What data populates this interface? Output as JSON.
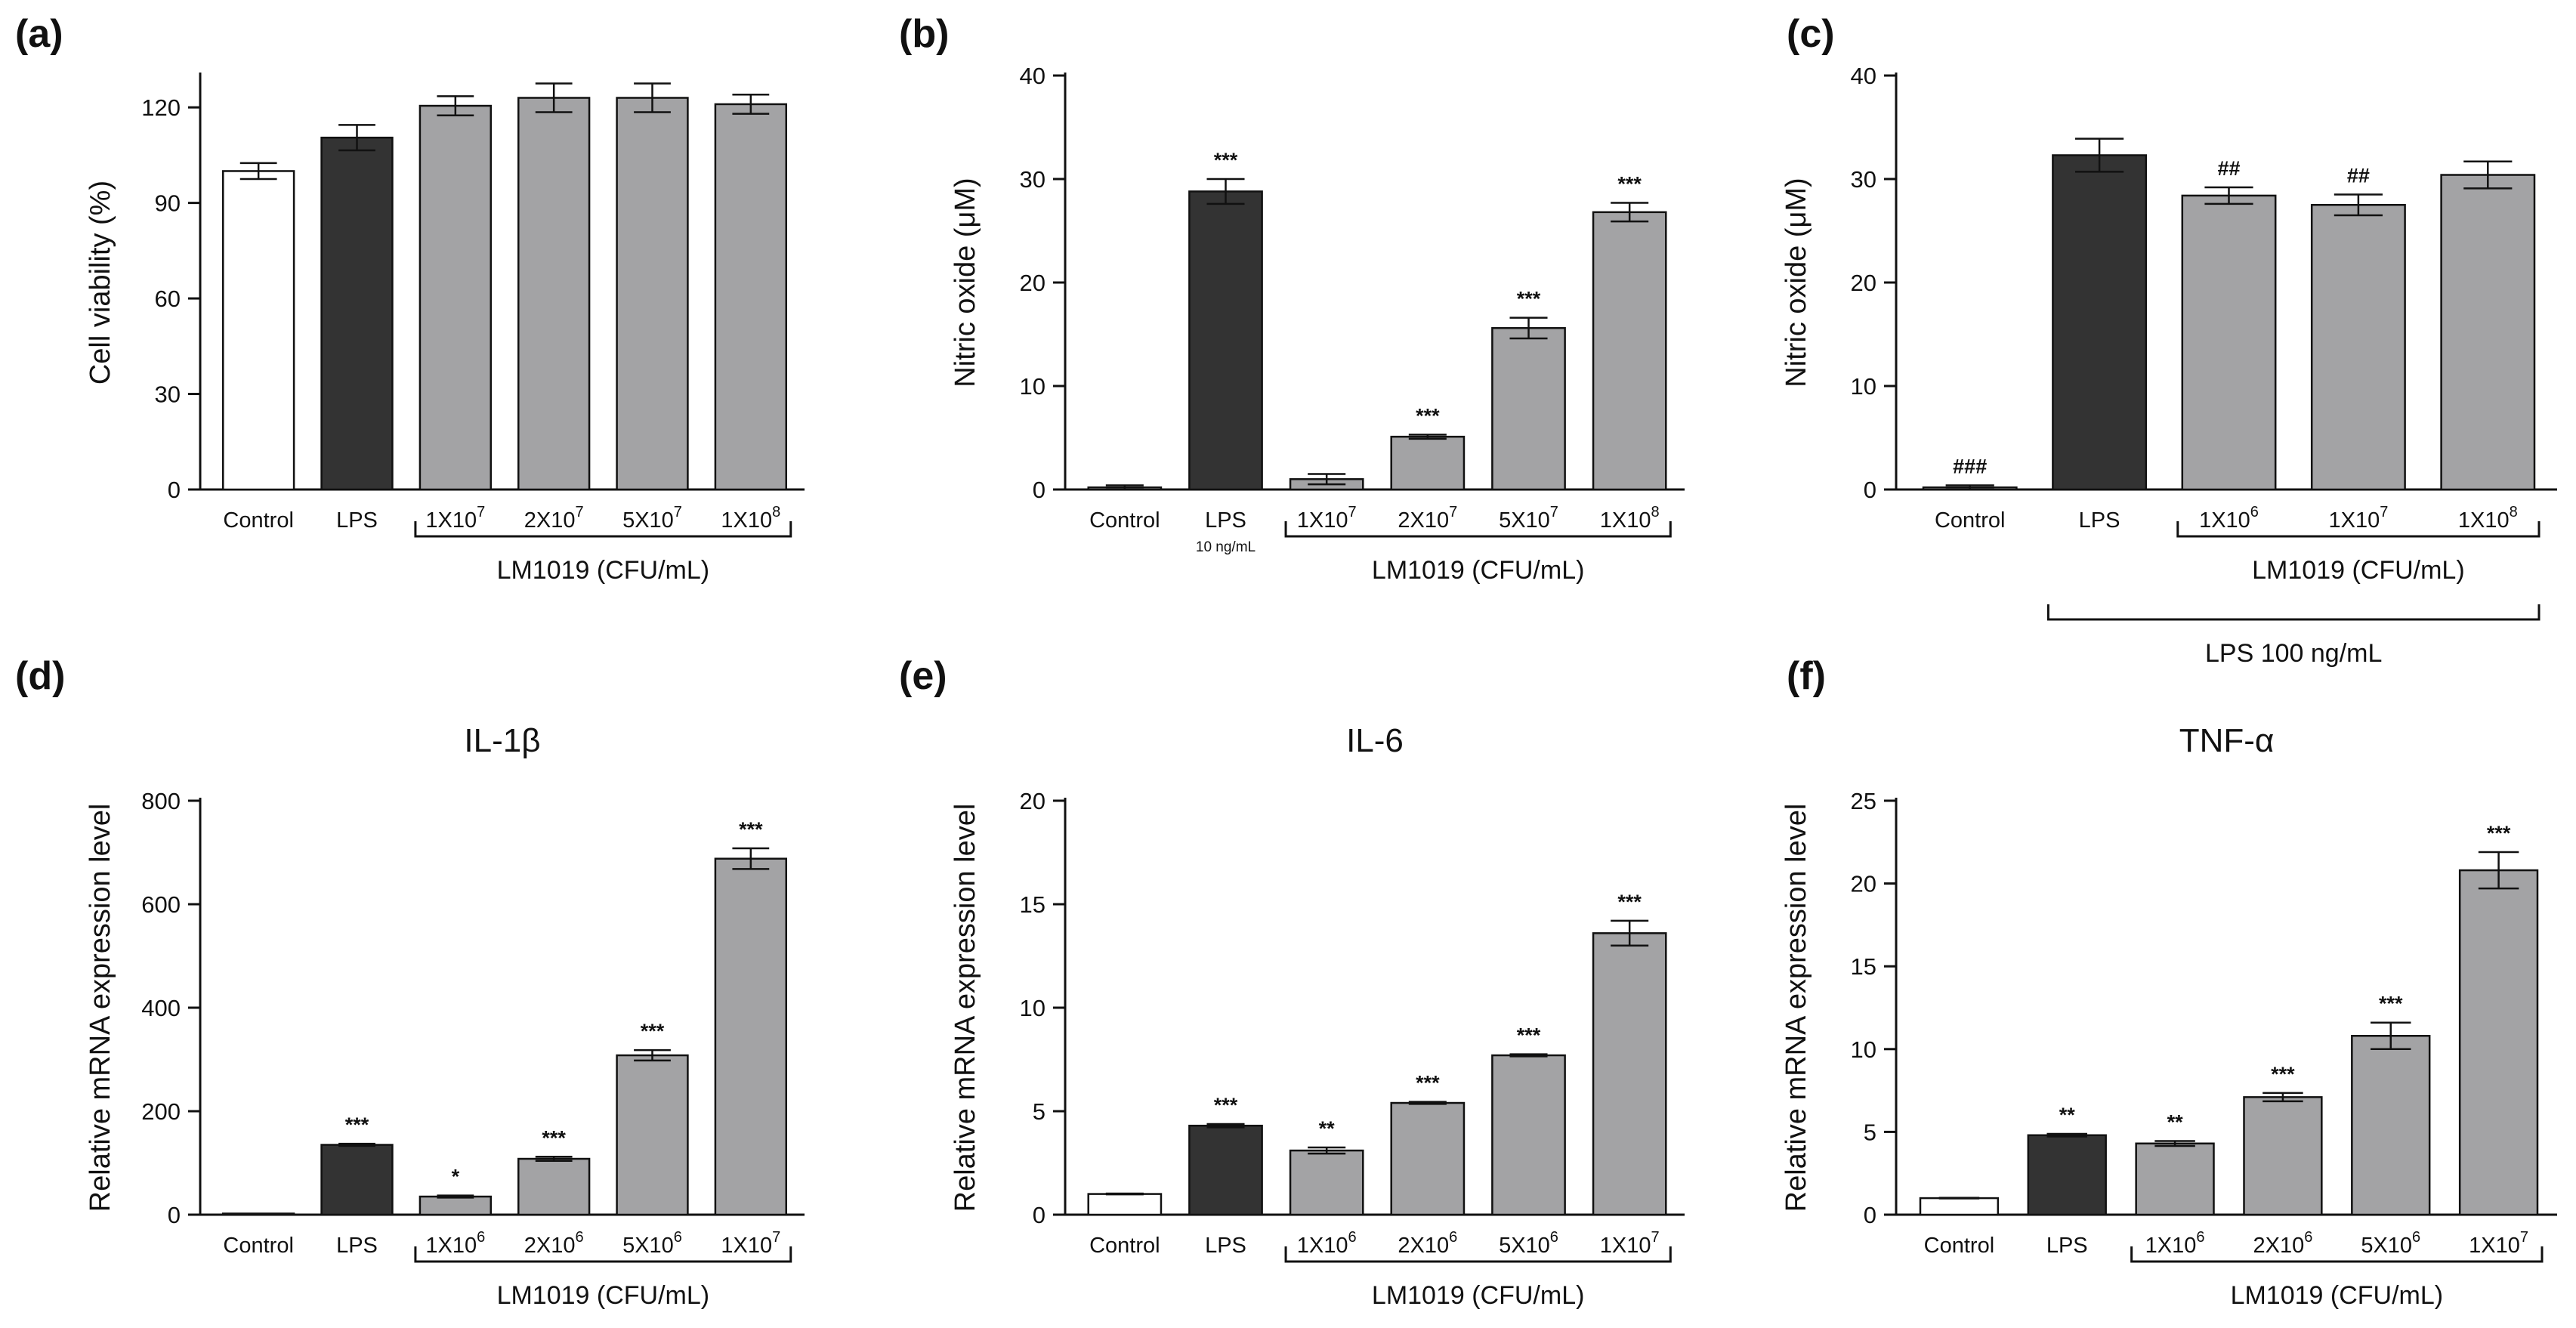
{
  "colors": {
    "control": "#ffffff",
    "lps": "#333333",
    "treatment": "#a3a3a5",
    "axis": "#111111"
  },
  "chart_data": [
    {
      "id": "a",
      "panel": "(a)",
      "type": "bar",
      "title": "",
      "ylabel": "Cell viability (%)",
      "ylim": [
        0,
        130
      ],
      "yticks": [
        0,
        30,
        60,
        90,
        120
      ],
      "categories": [
        {
          "base": "Control",
          "sup": "",
          "sub": ""
        },
        {
          "base": "LPS",
          "sup": "",
          "sub": ""
        },
        {
          "base": "1X10",
          "sup": "7",
          "sub": ""
        },
        {
          "base": "2X10",
          "sup": "7",
          "sub": ""
        },
        {
          "base": "5X10",
          "sup": "7",
          "sub": ""
        },
        {
          "base": "1X10",
          "sup": "8",
          "sub": ""
        }
      ],
      "values": [
        100,
        110.5,
        120.5,
        123,
        123,
        121
      ],
      "errors": [
        2.5,
        4,
        3,
        4.5,
        4.5,
        3
      ],
      "significance": [
        "",
        "",
        "",
        "",
        "",
        ""
      ],
      "fills": [
        "control",
        "lps",
        "treatment",
        "treatment",
        "treatment",
        "treatment"
      ],
      "groups": [
        {
          "label": "LM1019 (CFU/mL)",
          "from": 2,
          "to": 5
        }
      ]
    },
    {
      "id": "b",
      "panel": "(b)",
      "type": "bar",
      "title": "",
      "ylabel": "Nitric oxide (μM)",
      "ylim": [
        0,
        40
      ],
      "yticks": [
        0,
        10,
        20,
        30,
        40
      ],
      "categories": [
        {
          "base": "Control",
          "sup": "",
          "sub": ""
        },
        {
          "base": "LPS",
          "sup": "",
          "sub": "10 ng/mL"
        },
        {
          "base": "1X10",
          "sup": "7",
          "sub": ""
        },
        {
          "base": "2X10",
          "sup": "7",
          "sub": ""
        },
        {
          "base": "5X10",
          "sup": "7",
          "sub": ""
        },
        {
          "base": "1X10",
          "sup": "8",
          "sub": ""
        }
      ],
      "values": [
        0.2,
        28.8,
        1.0,
        5.1,
        15.6,
        26.8
      ],
      "errors": [
        0.2,
        1.2,
        0.5,
        0.2,
        1.0,
        0.9
      ],
      "significance": [
        "",
        "***",
        "",
        "***",
        "***",
        "***"
      ],
      "fills": [
        "control",
        "lps",
        "treatment",
        "treatment",
        "treatment",
        "treatment"
      ],
      "groups": [
        {
          "label": "LM1019 (CFU/mL)",
          "from": 2,
          "to": 5
        }
      ]
    },
    {
      "id": "c",
      "panel": "(c)",
      "type": "bar",
      "title": "",
      "ylabel": "Nitric oxide (μM)",
      "ylim": [
        0,
        40
      ],
      "yticks": [
        0,
        10,
        20,
        30,
        40
      ],
      "categories": [
        {
          "base": "Control",
          "sup": "",
          "sub": ""
        },
        {
          "base": "LPS",
          "sup": "",
          "sub": ""
        },
        {
          "base": "1X10",
          "sup": "6",
          "sub": ""
        },
        {
          "base": "1X10",
          "sup": "7",
          "sub": ""
        },
        {
          "base": "1X10",
          "sup": "8",
          "sub": ""
        }
      ],
      "values": [
        0.2,
        32.3,
        28.4,
        27.5,
        30.4
      ],
      "errors": [
        0.2,
        1.6,
        0.8,
        1.0,
        1.3
      ],
      "significance": [
        "###",
        "",
        "##",
        "##",
        ""
      ],
      "fills": [
        "control",
        "lps",
        "treatment",
        "treatment",
        "treatment"
      ],
      "groups": [
        {
          "label": "LM1019 (CFU/mL)",
          "from": 2,
          "to": 4
        },
        {
          "label": "LPS 100 ng/mL",
          "from": 1,
          "to": 4
        }
      ]
    },
    {
      "id": "d",
      "panel": "(d)",
      "type": "bar",
      "title": "IL-1β",
      "ylabel": "Relative mRNA expression level",
      "ylim": [
        0,
        800
      ],
      "yticks": [
        0,
        200,
        400,
        600,
        800
      ],
      "categories": [
        {
          "base": "Control",
          "sup": "",
          "sub": ""
        },
        {
          "base": "LPS",
          "sup": "",
          "sub": ""
        },
        {
          "base": "1X10",
          "sup": "6",
          "sub": ""
        },
        {
          "base": "2X10",
          "sup": "6",
          "sub": ""
        },
        {
          "base": "5X10",
          "sup": "6",
          "sub": ""
        },
        {
          "base": "1X10",
          "sup": "7",
          "sub": ""
        }
      ],
      "values": [
        1,
        135,
        35,
        108,
        308,
        688
      ],
      "errors": [
        0,
        2,
        2,
        4,
        10,
        20
      ],
      "significance": [
        "",
        "***",
        "*",
        "***",
        "***",
        "***"
      ],
      "fills": [
        "control",
        "lps",
        "treatment",
        "treatment",
        "treatment",
        "treatment"
      ],
      "groups": [
        {
          "label": "LM1019 (CFU/mL)",
          "from": 2,
          "to": 5
        }
      ]
    },
    {
      "id": "e",
      "panel": "(e)",
      "type": "bar",
      "title": "IL-6",
      "ylabel": "Relative mRNA expression level",
      "ylim": [
        0,
        20
      ],
      "yticks": [
        0,
        5,
        10,
        15,
        20
      ],
      "categories": [
        {
          "base": "Control",
          "sup": "",
          "sub": ""
        },
        {
          "base": "LPS",
          "sup": "",
          "sub": ""
        },
        {
          "base": "1X10",
          "sup": "6",
          "sub": ""
        },
        {
          "base": "2X10",
          "sup": "6",
          "sub": ""
        },
        {
          "base": "5X10",
          "sup": "6",
          "sub": ""
        },
        {
          "base": "1X10",
          "sup": "7",
          "sub": ""
        }
      ],
      "values": [
        1.0,
        4.3,
        3.1,
        5.4,
        7.7,
        13.6
      ],
      "errors": [
        0.02,
        0.08,
        0.15,
        0.05,
        0.05,
        0.6
      ],
      "significance": [
        "",
        "***",
        "**",
        "***",
        "***",
        "***"
      ],
      "fills": [
        "control",
        "lps",
        "treatment",
        "treatment",
        "treatment",
        "treatment"
      ],
      "groups": [
        {
          "label": "LM1019 (CFU/mL)",
          "from": 2,
          "to": 5
        }
      ]
    },
    {
      "id": "f",
      "panel": "(f)",
      "type": "bar",
      "title": "TNF-α",
      "ylabel": "Relative mRNA expression level",
      "ylim": [
        0,
        25
      ],
      "yticks": [
        0,
        5,
        10,
        15,
        20,
        25
      ],
      "categories": [
        {
          "base": "Control",
          "sup": "",
          "sub": ""
        },
        {
          "base": "LPS",
          "sup": "",
          "sub": ""
        },
        {
          "base": "1X10",
          "sup": "6",
          "sub": ""
        },
        {
          "base": "2X10",
          "sup": "6",
          "sub": ""
        },
        {
          "base": "5X10",
          "sup": "6",
          "sub": ""
        },
        {
          "base": "1X10",
          "sup": "7",
          "sub": ""
        }
      ],
      "values": [
        1.0,
        4.8,
        4.3,
        7.1,
        10.8,
        20.8
      ],
      "errors": [
        0.02,
        0.08,
        0.15,
        0.25,
        0.8,
        1.1
      ],
      "significance": [
        "",
        "**",
        "**",
        "***",
        "***",
        "***"
      ],
      "fills": [
        "control",
        "lps",
        "treatment",
        "treatment",
        "treatment",
        "treatment"
      ],
      "groups": [
        {
          "label": "LM1019 (CFU/mL)",
          "from": 2,
          "to": 5
        }
      ]
    }
  ]
}
